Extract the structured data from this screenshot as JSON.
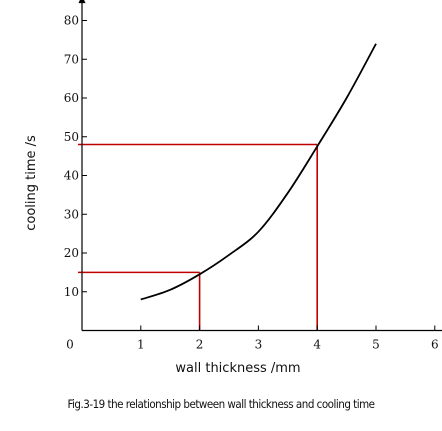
{
  "chart_data": {
    "type": "line",
    "title": "",
    "xlabel": "wall thickness /mm",
    "ylabel": "cooling time /s",
    "xlim": [
      0,
      6.4
    ],
    "ylim": [
      0,
      85
    ],
    "x_ticks": [
      1,
      2,
      3,
      4,
      5,
      6
    ],
    "y_ticks": [
      10,
      20,
      30,
      40,
      50,
      60,
      70,
      80
    ],
    "origin_label": "0",
    "grid": false,
    "legend": "none",
    "series": [
      {
        "color": "#000000",
        "x": [
          1.0,
          1.5,
          2.0,
          2.5,
          3.0,
          3.5,
          4.0,
          4.5,
          5.0
        ],
        "y": [
          8,
          10.5,
          14.5,
          19.5,
          25.5,
          35.5,
          47.5,
          60,
          74
        ]
      }
    ],
    "annotations": [
      {
        "type": "reference-lines",
        "x": 2,
        "y": 15,
        "color": "#c00000"
      },
      {
        "type": "reference-lines",
        "x": 4,
        "y": 48,
        "color": "#c00000"
      }
    ]
  },
  "caption": "Fig.3-19 the relationship between wall thickness and cooling time"
}
